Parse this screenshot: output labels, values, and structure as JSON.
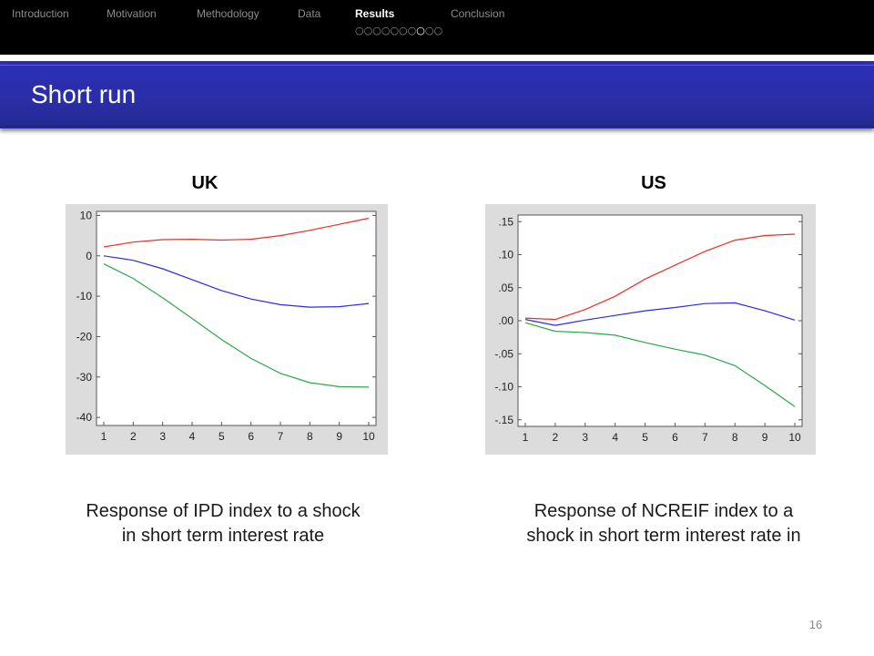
{
  "nav": {
    "items": [
      {
        "label": "Introduction",
        "active": false
      },
      {
        "label": "Motivation",
        "active": false
      },
      {
        "label": "Methodology",
        "active": false
      },
      {
        "label": "Data",
        "active": false
      },
      {
        "label": "Results",
        "active": true
      },
      {
        "label": "Conclusion",
        "active": false
      }
    ],
    "slide_dots": {
      "total": 10,
      "current_index": 7
    }
  },
  "title": "Short run",
  "panels": [
    {
      "heading": "UK",
      "caption_lines": [
        "Response of IPD index to a shock",
        "in short term interest rate"
      ]
    },
    {
      "heading": "US",
      "caption_lines": [
        "Response of NCREIF index  to a",
        "shock in short term interest rate in"
      ]
    }
  ],
  "page_number": "16",
  "chart_data": [
    {
      "type": "line",
      "x": [
        1,
        2,
        3,
        4,
        5,
        6,
        7,
        8,
        9,
        10
      ],
      "xticks": [
        "1",
        "2",
        "3",
        "4",
        "5",
        "6",
        "7",
        "8",
        "9",
        "10"
      ],
      "ylim": [
        -42,
        11
      ],
      "yticks": [
        10,
        0,
        -10,
        -20,
        -30,
        -40
      ],
      "ytick_labels": [
        "10",
        "0",
        "-10",
        "-20",
        "-30",
        "-40"
      ],
      "grid": false,
      "series": [
        {
          "color": "#e8302a",
          "values": [
            2.2,
            3.4,
            4.0,
            4.1,
            3.9,
            4.1,
            5.0,
            6.3,
            7.8,
            9.3
          ]
        },
        {
          "color": "#2a2ae8",
          "values": [
            0.0,
            -1.1,
            -3.2,
            -5.9,
            -8.6,
            -10.7,
            -12.1,
            -12.7,
            -12.6,
            -11.8
          ]
        },
        {
          "color": "#2aa84a",
          "values": [
            -2.0,
            -5.6,
            -10.4,
            -15.5,
            -20.7,
            -25.4,
            -29.1,
            -31.4,
            -32.4,
            -32.5
          ]
        }
      ]
    },
    {
      "type": "line",
      "x": [
        1,
        2,
        3,
        4,
        5,
        6,
        7,
        8,
        9,
        10
      ],
      "xticks": [
        "1",
        "2",
        "3",
        "4",
        "5",
        "6",
        "7",
        "8",
        "9",
        "10"
      ],
      "ylim": [
        -0.16,
        0.16
      ],
      "yticks": [
        0.15,
        0.1,
        0.05,
        0.0,
        -0.05,
        -0.1,
        -0.15
      ],
      "ytick_labels": [
        ".15",
        ".10",
        ".05",
        ".00",
        "-.05",
        "-.10",
        "-.15"
      ],
      "grid": false,
      "series": [
        {
          "color": "#e8302a",
          "values": [
            0.004,
            0.002,
            0.017,
            0.037,
            0.063,
            0.084,
            0.105,
            0.122,
            0.129,
            0.131
          ]
        },
        {
          "color": "#2a2ae8",
          "values": [
            0.002,
            -0.007,
            0.001,
            0.008,
            0.015,
            0.02,
            0.026,
            0.027,
            0.015,
            0.001
          ]
        },
        {
          "color": "#2aa84a",
          "values": [
            -0.003,
            -0.016,
            -0.018,
            -0.022,
            -0.033,
            -0.043,
            -0.052,
            -0.068,
            -0.098,
            -0.13
          ]
        }
      ]
    }
  ]
}
